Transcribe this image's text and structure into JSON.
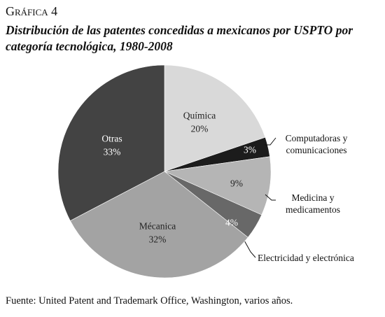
{
  "chart_data": {
    "type": "pie",
    "title": "Gráfica 4",
    "subtitle": "Distribución de las patentes concedidas a mexicanos por USPTO por categoría tecnológica, 1980-2008",
    "categories": [
      "Química",
      "Computadoras y comunicaciones",
      "Medicina y medicamentos",
      "Electricidad y electrónica",
      "Mécanica",
      "Otras"
    ],
    "values": [
      20,
      3,
      9,
      4,
      32,
      33
    ],
    "value_labels": [
      "20%",
      "3%",
      "9%",
      "4%",
      "32%",
      "33%"
    ],
    "colors": [
      "#d9d9d9",
      "#1c1c1c",
      "#b5b5b5",
      "#686868",
      "#a3a3a3",
      "#434343"
    ],
    "note": "Fuente: United Patent and Trademark Office, Washington, varios años."
  }
}
